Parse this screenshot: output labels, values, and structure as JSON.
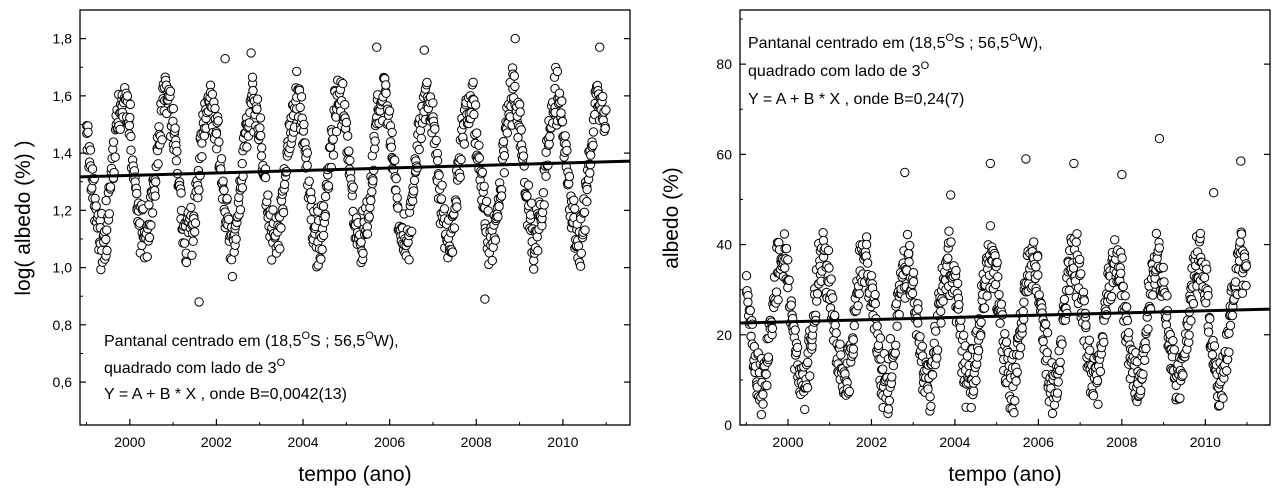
{
  "chart_data": [
    {
      "type": "scatter",
      "id": "left",
      "xlabel": "tempo (ano)",
      "ylabel": "log( albedo (%) )",
      "xlim": [
        1998.85,
        2011.55
      ],
      "ylim": [
        0.45,
        1.9
      ],
      "xticks": [
        2000,
        2002,
        2004,
        2006,
        2008,
        2010
      ],
      "yticks": [
        0.6,
        0.8,
        1.0,
        1.2,
        1.4,
        1.6,
        1.8
      ],
      "ytick_labels": [
        "0,6",
        "0,8",
        "1,0",
        "1,2",
        "1,4",
        "1,6",
        "1,8"
      ],
      "annotation": [
        "Pantanal centrado em (18,5",
        "O",
        "S ; 56,5",
        "O",
        "W),",
        "quadrado com lado de 3",
        "O",
        "Y = A + B * X , onde B=0,0042(13)"
      ],
      "fit_line": {
        "x": [
          1998.85,
          2011.55
        ],
        "y": [
          1.317,
          1.372
        ]
      },
      "seasonal_pattern": {
        "mean": 1.34,
        "amplitude": 0.25,
        "peak_phase_year_fraction": 0.85,
        "year_start": 1999.0,
        "year_end": 2011.0,
        "spread": 0.07
      },
      "outliers": [
        [
          2008.2,
          0.89
        ],
        [
          2008.9,
          1.8
        ],
        [
          2002.2,
          1.73
        ],
        [
          2002.8,
          1.75
        ],
        [
          2005.7,
          1.77
        ],
        [
          2006.8,
          1.76
        ],
        [
          2010.85,
          1.77
        ],
        [
          2001.6,
          0.88
        ]
      ]
    },
    {
      "type": "scatter",
      "id": "right",
      "xlabel": "tempo (ano)",
      "ylabel": "albedo (%)",
      "xlim": [
        1998.85,
        2011.55
      ],
      "ylim": [
        0,
        92
      ],
      "xticks": [
        2000,
        2002,
        2004,
        2006,
        2008,
        2010
      ],
      "yticks": [
        0,
        20,
        40,
        60,
        80
      ],
      "ytick_labels": [
        "0",
        "20",
        "40",
        "60",
        "80"
      ],
      "annotation": [
        "Pantanal centrado em (18,5",
        "O",
        "S ; 56,5",
        "O",
        "W),",
        "quadrado com lado de 3",
        "O",
        "Y = A + B * X , onde B=0,24(7)"
      ],
      "fit_line": {
        "x": [
          1998.85,
          2011.55
        ],
        "y": [
          22.6,
          25.7
        ]
      },
      "seasonal_pattern": {
        "mean": 23,
        "amplitude": 14,
        "peak_phase_year_fraction": 0.85,
        "year_start": 1999.0,
        "year_end": 2011.0,
        "spread": 5
      },
      "outliers": [
        [
          2008.9,
          63.5
        ],
        [
          2005.7,
          59
        ],
        [
          2010.85,
          58.5
        ],
        [
          2004.85,
          58
        ],
        [
          2006.85,
          58
        ],
        [
          2002.8,
          56
        ],
        [
          2008.0,
          55.5
        ],
        [
          2010.2,
          51.5
        ],
        [
          2003.9,
          51
        ]
      ]
    }
  ]
}
